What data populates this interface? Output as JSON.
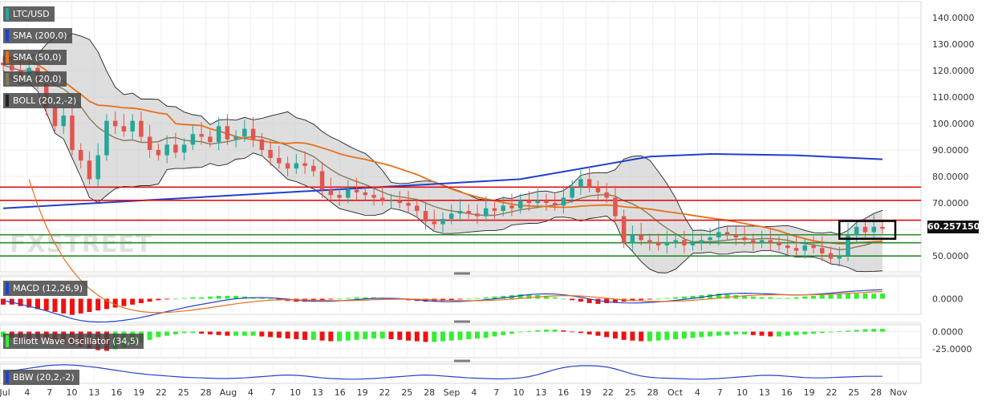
{
  "legend": {
    "symbol": "LTC/USD",
    "sma200": "SMA (200,0)",
    "sma50": "SMA (50,0)",
    "sma20": "SMA (20,0)",
    "boll": "BOLL (20,2,-2)",
    "macd": "MACD (12,26,9)",
    "ewo": "Elliott Wave Oscillator (34,5)",
    "bbw": "BBW (20,2,-2)"
  },
  "watermark": "FXSTREET",
  "last_price": "60.257150",
  "colors": {
    "bull": "#26a69a",
    "bear": "#e0564f",
    "sma200": "#1f3fd0",
    "sma50": "#e8701a",
    "sma20": "#8a7a55",
    "resistance": "#e01010",
    "support": "#2a8a2a",
    "hist_pos": "#33ee33",
    "hist_neg": "#ee1111"
  },
  "chart_data": [
    {
      "type": "candlestick",
      "name": "price",
      "ylim": [
        44,
        146
      ],
      "yticks": [
        50,
        60,
        70,
        80,
        90,
        100,
        110,
        120,
        130,
        140
      ],
      "ytick_labels": [
        "50.0000",
        "60.0000",
        "70.0000",
        "80.0000",
        "90.0000",
        "100.0000",
        "110.0000",
        "120.0000",
        "130.0000",
        "140.0000"
      ],
      "x_labels": [
        "Jul",
        "4",
        "7",
        "10",
        "13",
        "16",
        "19",
        "22",
        "25",
        "28",
        "Aug",
        "4",
        "7",
        "10",
        "13",
        "16",
        "19",
        "22",
        "25",
        "28",
        "Sep",
        "4",
        "7",
        "10",
        "13",
        "16",
        "19",
        "22",
        "25",
        "28",
        "Oct",
        "4",
        "7",
        "10",
        "13",
        "16",
        "19",
        "22",
        "25",
        "28",
        "Nov"
      ],
      "closes": [
        122,
        120,
        118,
        121,
        115,
        106,
        99,
        103,
        90,
        86,
        79,
        88,
        101,
        99,
        97,
        101,
        95,
        90,
        88,
        92,
        89,
        92,
        96,
        95,
        93,
        99,
        94,
        95,
        98,
        94,
        90,
        87,
        85,
        83,
        85,
        84,
        82,
        75,
        73,
        72,
        75,
        74,
        73,
        72,
        71,
        71,
        70,
        69,
        67,
        63,
        62,
        64,
        66,
        67,
        66,
        65,
        68,
        67,
        69,
        68,
        71,
        70,
        71,
        70,
        69,
        72,
        76,
        79,
        76,
        74,
        72,
        65,
        55,
        58,
        56,
        55,
        54,
        55,
        56,
        54,
        55,
        56,
        57,
        59,
        58,
        57,
        56,
        55,
        56,
        55,
        54,
        53,
        52,
        54,
        53,
        51,
        49,
        50,
        58,
        61,
        59,
        61,
        60.26
      ],
      "support_lines": [
        58,
        55,
        50
      ],
      "resistance_lines": [
        76,
        71,
        63.5
      ]
    },
    {
      "type": "bar",
      "name": "macd_histogram",
      "zero_label": "0.0000",
      "values": [
        -4,
        -4,
        -5,
        -6,
        -7,
        -8,
        -9,
        -10,
        -11,
        -10,
        -9,
        -8,
        -7,
        -6,
        -5,
        -4,
        -3,
        -2,
        -1,
        -0.5,
        0,
        0.5,
        1,
        1,
        1.5,
        2,
        2,
        2,
        1.5,
        1,
        0.5,
        0,
        -1,
        -1.5,
        -2,
        -2,
        -1.5,
        -1,
        -0.5,
        0,
        0.5,
        1,
        1,
        1,
        0.5,
        0,
        -0.5,
        -1,
        -1.5,
        -2,
        -2,
        -1.5,
        -1,
        -0.5,
        0,
        0.5,
        1,
        1.5,
        2,
        2.5,
        3,
        3,
        2.5,
        2,
        1,
        0,
        -1,
        -2,
        -3,
        -3.5,
        -3,
        -2.5,
        -2,
        -1.5,
        -1,
        -0.5,
        0,
        0.5,
        1,
        1.5,
        2,
        2.5,
        3,
        3.5,
        3,
        2.5,
        2,
        1.5,
        1,
        1,
        0.5,
        0.5,
        1,
        1.5,
        2,
        2.5,
        3,
        3.5,
        3.5,
        3.5,
        3.5,
        3.5,
        3.5
      ]
    },
    {
      "type": "bar",
      "name": "elliott_wave_oscillator",
      "ylim": [
        -38,
        10
      ],
      "yticks": [
        0,
        -25
      ],
      "ytick_labels": [
        "0.0000",
        "-25.0000"
      ],
      "values": [
        -8,
        -9,
        -10,
        -11,
        -12,
        -14,
        -16,
        -18,
        -20,
        -22,
        -25,
        -27,
        -28,
        -26,
        -24,
        -20,
        -16,
        -12,
        -8,
        -6,
        -4,
        -2,
        -2,
        -3,
        -4,
        -5,
        -6,
        -6,
        -6,
        -6,
        -7,
        -8,
        -9,
        -10,
        -11,
        -12,
        -12,
        -13,
        -14,
        -14,
        -13,
        -12,
        -11,
        -10,
        -10,
        -11,
        -12,
        -13,
        -14,
        -15,
        -15,
        -14,
        -13,
        -12,
        -11,
        -10,
        -9,
        -7,
        -5,
        -3,
        -1,
        0.5,
        2,
        3,
        3,
        2,
        0,
        -2,
        -4,
        -6,
        -8,
        -10,
        -12,
        -13,
        -14,
        -14,
        -13,
        -12,
        -11,
        -10,
        -9,
        -8,
        -7,
        -6,
        -5,
        -4,
        -4,
        -5,
        -6,
        -7,
        -7,
        -6,
        -5,
        -4,
        -3,
        -2,
        -1,
        0.5,
        1.5,
        2.5,
        3.5,
        4,
        4
      ]
    },
    {
      "type": "line",
      "name": "bbw",
      "values": [
        0.3,
        0.34,
        0.38,
        0.42,
        0.46,
        0.5,
        0.52,
        0.53,
        0.52,
        0.5,
        0.47,
        0.44,
        0.4,
        0.36,
        0.32,
        0.28,
        0.25,
        0.22,
        0.2,
        0.18,
        0.16,
        0.14,
        0.13,
        0.12,
        0.11,
        0.1,
        0.1,
        0.11,
        0.12,
        0.14,
        0.16,
        0.18,
        0.2,
        0.21,
        0.2,
        0.18,
        0.15,
        0.12,
        0.1,
        0.09,
        0.08,
        0.08,
        0.09,
        0.1,
        0.12,
        0.14,
        0.16,
        0.18,
        0.2,
        0.21,
        0.2,
        0.18,
        0.16,
        0.14,
        0.12,
        0.11,
        0.1,
        0.09,
        0.09,
        0.1,
        0.12,
        0.16,
        0.22,
        0.3,
        0.38,
        0.44,
        0.48,
        0.5,
        0.5,
        0.49,
        0.46,
        0.4,
        0.32,
        0.24,
        0.18,
        0.14,
        0.12,
        0.11,
        0.1,
        0.09,
        0.08,
        0.08,
        0.09,
        0.1,
        0.12,
        0.14,
        0.16,
        0.18,
        0.2,
        0.2,
        0.19,
        0.17,
        0.15,
        0.13,
        0.12,
        0.12,
        0.13,
        0.14,
        0.15,
        0.16,
        0.17,
        0.17,
        0.17
      ]
    }
  ]
}
